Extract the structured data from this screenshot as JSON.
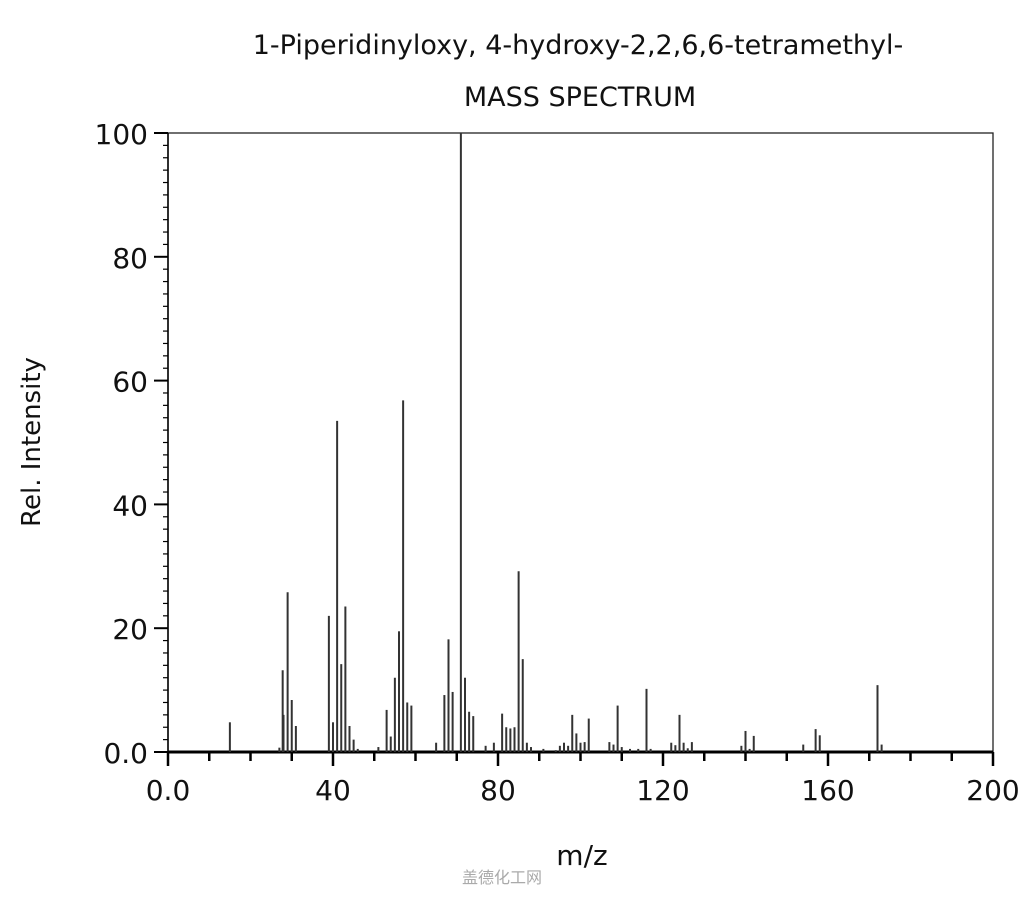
{
  "chart_data": {
    "type": "bar",
    "title": "1-Piperidinyloxy, 4-hydroxy-2,2,6,6-tetramethyl-",
    "subtitle": "MASS SPECTRUM",
    "xlabel": "m/z",
    "ylabel": "Rel. Intensity",
    "xlim": [
      0,
      200
    ],
    "ylim": [
      0,
      100
    ],
    "x_tick_labels": [
      "0.0",
      "40",
      "80",
      "120",
      "160",
      "200"
    ],
    "y_tick_labels": [
      "0.0",
      "20",
      "40",
      "60",
      "80",
      "100"
    ],
    "grid": false,
    "peaks": [
      [
        15,
        4.8
      ],
      [
        27,
        0.7
      ],
      [
        27.8,
        13.2
      ],
      [
        28,
        6
      ],
      [
        29,
        25.8
      ],
      [
        30,
        8.4
      ],
      [
        31,
        4.2
      ],
      [
        39,
        22
      ],
      [
        40,
        4.8
      ],
      [
        41,
        53.5
      ],
      [
        42,
        14.2
      ],
      [
        43,
        23.5
      ],
      [
        44,
        4.2
      ],
      [
        45,
        2
      ],
      [
        46,
        0.5
      ],
      [
        51,
        0.8
      ],
      [
        53,
        6.8
      ],
      [
        54,
        2.5
      ],
      [
        55,
        12
      ],
      [
        56,
        19.5
      ],
      [
        57,
        56.8
      ],
      [
        58,
        8
      ],
      [
        59,
        7.5
      ],
      [
        65,
        1.5
      ],
      [
        67,
        9.2
      ],
      [
        68,
        18.2
      ],
      [
        69,
        9.7
      ],
      [
        71,
        100
      ],
      [
        72,
        12
      ],
      [
        73,
        6.5
      ],
      [
        74,
        5.8
      ],
      [
        77,
        1
      ],
      [
        79,
        1.5
      ],
      [
        81,
        6.2
      ],
      [
        82,
        4
      ],
      [
        83,
        3.8
      ],
      [
        84,
        4
      ],
      [
        85,
        29.2
      ],
      [
        86,
        15
      ],
      [
        87,
        1.5
      ],
      [
        88,
        0.8
      ],
      [
        91,
        0.5
      ],
      [
        94,
        0.3
      ],
      [
        95,
        1
      ],
      [
        96,
        1.5
      ],
      [
        97,
        1
      ],
      [
        98,
        6
      ],
      [
        99,
        3
      ],
      [
        100,
        1.5
      ],
      [
        101,
        1.6
      ],
      [
        102,
        5.4
      ],
      [
        107,
        1.6
      ],
      [
        108,
        1.2
      ],
      [
        109,
        7.5
      ],
      [
        110,
        0.8
      ],
      [
        112,
        0.5
      ],
      [
        114,
        0.5
      ],
      [
        116,
        10.2
      ],
      [
        117,
        0.5
      ],
      [
        122,
        1.5
      ],
      [
        123,
        1.1
      ],
      [
        124,
        6
      ],
      [
        125,
        1.5
      ],
      [
        126,
        0.6
      ],
      [
        127,
        1.6
      ],
      [
        139,
        1
      ],
      [
        140,
        3.4
      ],
      [
        141,
        0.5
      ],
      [
        142,
        2.6
      ],
      [
        154,
        1.2
      ],
      [
        157,
        3.7
      ],
      [
        158,
        2.7
      ],
      [
        172,
        10.8
      ],
      [
        173,
        1.2
      ]
    ]
  },
  "watermark": "盖德化工网"
}
